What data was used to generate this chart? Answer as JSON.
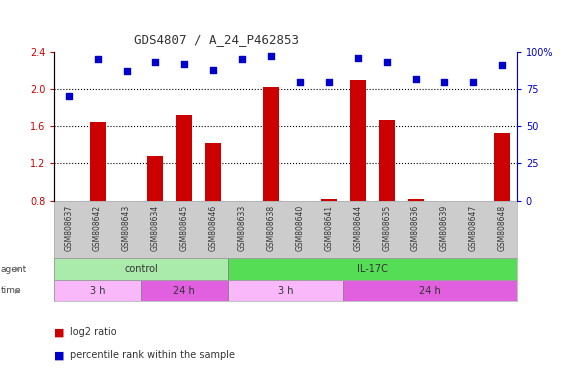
{
  "title": "GDS4807 / A_24_P462853",
  "samples": [
    "GSM808637",
    "GSM808642",
    "GSM808643",
    "GSM808634",
    "GSM808645",
    "GSM808646",
    "GSM808633",
    "GSM808638",
    "GSM808640",
    "GSM808641",
    "GSM808644",
    "GSM808635",
    "GSM808636",
    "GSM808639",
    "GSM808647",
    "GSM808648"
  ],
  "log2_ratio": [
    0.8,
    1.65,
    0.8,
    1.28,
    1.72,
    1.42,
    0.8,
    2.02,
    0.8,
    0.82,
    2.1,
    1.67,
    0.82,
    0.8,
    0.8,
    1.53
  ],
  "percentile": [
    70,
    95,
    87,
    93,
    92,
    88,
    95,
    97,
    80,
    80,
    96,
    93,
    82,
    80,
    80,
    91
  ],
  "ylim_left": [
    0.8,
    2.4
  ],
  "ylim_right": [
    0,
    100
  ],
  "yticks_left": [
    0.8,
    1.2,
    1.6,
    2.0,
    2.4
  ],
  "yticks_right": [
    0,
    25,
    50,
    75,
    100
  ],
  "ytick_labels_right": [
    "0",
    "25",
    "50",
    "75",
    "100%"
  ],
  "dotted_lines": [
    2.0,
    1.6,
    1.2
  ],
  "agent_groups": [
    {
      "label": "control",
      "start": 0,
      "end": 6,
      "color": "#aaeaaa"
    },
    {
      "label": "IL-17C",
      "start": 6,
      "end": 16,
      "color": "#55dd55"
    }
  ],
  "time_groups": [
    {
      "label": "3 h",
      "start": 0,
      "end": 3,
      "color": "#f9b8f9"
    },
    {
      "label": "24 h",
      "start": 3,
      "end": 6,
      "color": "#e060e0"
    },
    {
      "label": "3 h",
      "start": 6,
      "end": 10,
      "color": "#f9b8f9"
    },
    {
      "label": "24 h",
      "start": 10,
      "end": 16,
      "color": "#e060e0"
    }
  ],
  "bar_color": "#cc0000",
  "dot_color": "#0000cc",
  "title_color": "#333333",
  "left_axis_color": "#cc0000",
  "right_axis_color": "#0000cc",
  "background_color": "#ffffff",
  "label_bg_color": "#cccccc"
}
